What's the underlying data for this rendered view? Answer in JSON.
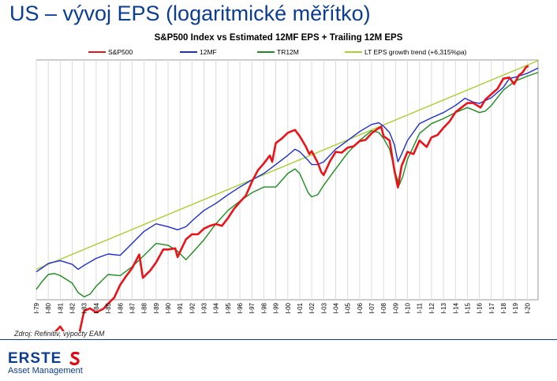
{
  "slide_title": "US – vývoj EPS (logaritmické měřítko)",
  "source_note": "Zdroj: Refinitiv, výpočty EAM",
  "logo": {
    "word": "ERSTE",
    "sub": "Asset Management",
    "accent": "#e30613",
    "color": "#0b3d91"
  },
  "chart_data": {
    "type": "line",
    "title": "S&P500 Index vs Estimated 12MF EPS + Trailing 12M EPS",
    "xlabel": "",
    "ylabel": "",
    "y_scale": "log",
    "y_axis_labels_shown": false,
    "grid": "vertical",
    "legend_position": "top",
    "x_tick_labels": [
      "I-79",
      "I-80",
      "I-81",
      "I-82",
      "I-83",
      "I-84",
      "I-85",
      "I-86",
      "I-87",
      "I-88",
      "I-89",
      "I-90",
      "I-91",
      "I-92",
      "I-93",
      "I-94",
      "I-95",
      "I-96",
      "I-97",
      "I-98",
      "I-99",
      "I-00",
      "I-01",
      "I-02",
      "I-03",
      "I-04",
      "I-05",
      "I-06",
      "I-07",
      "I-08",
      "I-09",
      "I-10",
      "I-11",
      "I-12",
      "I-13",
      "I-14",
      "I-15",
      "I-16",
      "I-17",
      "I-18",
      "I-19",
      "I-20"
    ],
    "x_range": [
      1979.0,
      2020.9
    ],
    "series": [
      {
        "name": "S&P500",
        "color": "#e8141a",
        "width": 2.6,
        "x": [
          1979.0,
          1980.0,
          1980.5,
          1981.0,
          1981.5,
          1982.0,
          1982.6,
          1983.0,
          1983.5,
          1984.0,
          1984.6,
          1985.0,
          1985.5,
          1986.0,
          1986.5,
          1987.0,
          1987.6,
          1987.9,
          1988.5,
          1989.0,
          1989.6,
          1990.0,
          1990.6,
          1990.8,
          1991.0,
          1991.5,
          1992.0,
          1992.5,
          1993.0,
          1993.5,
          1994.0,
          1994.5,
          1995.0,
          1995.5,
          1996.0,
          1996.5,
          1997.0,
          1997.5,
          1998.0,
          1998.5,
          1998.7,
          1999.0,
          1999.5,
          2000.0,
          2000.6,
          2001.0,
          2001.5,
          2001.8,
          2002.0,
          2002.5,
          2002.8,
          2003.0,
          2003.5,
          2004.0,
          2004.5,
          2005.0,
          2005.5,
          2006.0,
          2006.5,
          2007.0,
          2007.5,
          2007.8,
          2008.0,
          2008.5,
          2008.9,
          2009.2,
          2009.5,
          2010.0,
          2010.5,
          2011.0,
          2011.6,
          2012.0,
          2012.5,
          2013.0,
          2013.5,
          2014.0,
          2014.5,
          2015.0,
          2015.5,
          2016.1,
          2016.5,
          2017.0,
          2017.5,
          2018.0,
          2018.5,
          2018.9,
          2019.3,
          2019.6,
          2019.9,
          2020.1
        ],
        "y": [
          102,
          110,
          122,
          132,
          118,
          112,
          122,
          160,
          165,
          157,
          164,
          175,
          188,
          220,
          245,
          270,
          320,
          240,
          262,
          290,
          340,
          340,
          345,
          310,
          330,
          385,
          410,
          410,
          440,
          455,
          465,
          455,
          500,
          560,
          610,
          660,
          780,
          900,
          980,
          1080,
          1000,
          1260,
          1330,
          1430,
          1480,
          1370,
          1210,
          1100,
          1140,
          990,
          880,
          850,
          1000,
          1130,
          1120,
          1190,
          1210,
          1290,
          1310,
          1420,
          1500,
          1540,
          1370,
          1300,
          900,
          730,
          950,
          1130,
          1100,
          1300,
          1200,
          1350,
          1390,
          1520,
          1640,
          1840,
          1950,
          2060,
          2060,
          1950,
          2150,
          2300,
          2450,
          2780,
          2820,
          2600,
          2900,
          3000,
          3200,
          3250
        ]
      },
      {
        "name": "12MF",
        "color": "#1c2ed0",
        "width": 1.4,
        "x": [
          1979.0,
          1979.5,
          1980.0,
          1980.5,
          1981.0,
          1982.0,
          1982.5,
          1983.0,
          1984.0,
          1985.0,
          1986.0,
          1987.0,
          1988.0,
          1989.0,
          1990.0,
          1990.8,
          1991.5,
          1992.0,
          1993.0,
          1994.0,
          1995.0,
          1996.0,
          1997.0,
          1998.0,
          1999.0,
          2000.0,
          2000.6,
          2001.0,
          2001.7,
          2002.0,
          2002.5,
          2003.0,
          2004.0,
          2005.0,
          2006.0,
          2007.0,
          2007.6,
          2008.0,
          2008.5,
          2008.9,
          2009.2,
          2009.5,
          2010.0,
          2011.0,
          2012.0,
          2013.0,
          2014.0,
          2014.8,
          2015.5,
          2016.0,
          2017.0,
          2018.0,
          2018.5,
          2019.0,
          2020.0,
          2020.9
        ],
        "y": [
          15.5,
          16.3,
          17.2,
          17.5,
          17.8,
          17.0,
          16.0,
          16.8,
          18.3,
          19.3,
          19.0,
          22.0,
          25.5,
          28.0,
          27.0,
          26.0,
          27.0,
          29.0,
          33.0,
          36.0,
          40.0,
          44.0,
          48.0,
          52.0,
          58.0,
          65.0,
          70.0,
          68.0,
          61.0,
          58.0,
          58.0,
          60.0,
          70.0,
          78.0,
          87.0,
          95.0,
          97.0,
          93.0,
          86.0,
          74.0,
          60.0,
          66.0,
          78.0,
          96.0,
          103.0,
          110.0,
          120.0,
          131.0,
          125.0,
          123.0,
          132.0,
          150.0,
          167.0,
          170.0,
          178.0,
          190.0
        ]
      },
      {
        "name": "TR12M",
        "color": "#1e8c1e",
        "width": 1.4,
        "x": [
          1979.0,
          1979.5,
          1980.0,
          1980.5,
          1981.0,
          1982.0,
          1982.5,
          1983.0,
          1983.5,
          1984.0,
          1985.0,
          1986.0,
          1987.0,
          1988.0,
          1989.0,
          1990.0,
          1990.8,
          1991.5,
          1992.0,
          1993.0,
          1994.0,
          1995.0,
          1996.0,
          1997.0,
          1998.0,
          1999.0,
          2000.0,
          2000.6,
          2001.0,
          2001.7,
          2002.0,
          2002.5,
          2003.0,
          2004.0,
          2005.0,
          2006.0,
          2007.0,
          2007.6,
          2008.0,
          2008.5,
          2009.0,
          2009.3,
          2009.6,
          2010.0,
          2011.0,
          2012.0,
          2013.0,
          2014.0,
          2015.0,
          2016.0,
          2016.5,
          2017.0,
          2018.0,
          2019.0,
          2020.0,
          2020.9
        ],
        "y": [
          12.5,
          13.8,
          15.0,
          15.2,
          14.8,
          13.5,
          12.0,
          11.4,
          11.8,
          13.0,
          15.0,
          14.8,
          16.5,
          19.0,
          22.0,
          21.5,
          20.0,
          18.0,
          19.5,
          23.0,
          28.0,
          33.0,
          37.0,
          41.0,
          44.0,
          44.0,
          52.0,
          55.0,
          52.0,
          41.0,
          39.0,
          40.0,
          45.0,
          55.0,
          67.0,
          78.0,
          88.0,
          86.0,
          80.0,
          70.0,
          52.0,
          45.0,
          50.0,
          62.0,
          85.0,
          96.0,
          102.0,
          110.0,
          117.0,
          110.0,
          112.0,
          120.0,
          145.0,
          162.0,
          172.0,
          180.0
        ]
      },
      {
        "name": "LT EPS growth trend (+6,315%pa)",
        "color": "#a8cf2e",
        "width": 1.4,
        "x": [
          1979.0,
          2020.9
        ],
        "y": [
          16.0,
          208.2
        ]
      }
    ],
    "legend": [
      "S&P500",
      "12MF",
      "TR12M",
      "LT EPS growth trend (+6,315%pa)"
    ]
  }
}
